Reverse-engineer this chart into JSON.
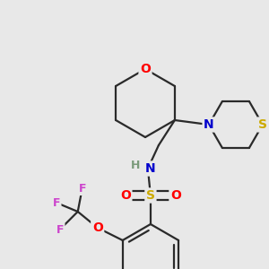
{
  "background_color": "#e8e8e8",
  "atom_colors": {
    "O": "#ff0000",
    "N": "#0000cc",
    "S_sulfonamide": "#ccaa00",
    "S_thio": "#ccaa00",
    "F": "#cc44cc",
    "H": "#7a9a7a",
    "C": "#2a2a2a"
  },
  "bond_color": "#2a2a2a",
  "bond_width": 1.6,
  "fig_bg": "#e8e8e8"
}
